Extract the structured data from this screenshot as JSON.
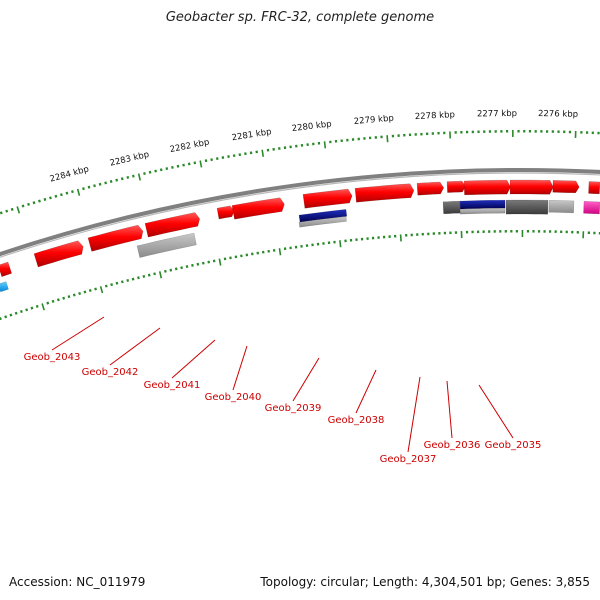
{
  "title": "Geobacter sp. FRC-32, complete genome",
  "footer": {
    "accession": "Accession: NC_011979",
    "summary": "Topology: circular; Length: 4,304,501 bp; Genes: 3,855"
  },
  "scale_labels": [
    "2284 kbp",
    "2283 kbp",
    "2282 kbp",
    "2281 kbp",
    "2280 kbp",
    "2279 kbp",
    "2278 kbp",
    "2277 kbp",
    "2276 kbp"
  ],
  "gene_labels": [
    "Geob_2043",
    "Geob_2042",
    "Geob_2041",
    "Geob_2040",
    "Geob_2039",
    "Geob_2038",
    "Geob_2037",
    "Geob_2036",
    "Geob_2035"
  ],
  "colors": {
    "gene_forward": "#ff0000",
    "tick": "#2a8a2a",
    "backbone": "#808080",
    "label": "#cc0000",
    "rna_navy": "#000080",
    "gray_feature": "#a0a0a0",
    "dark_feature": "#505050",
    "magenta_feature": "#ff00aa",
    "cyan_feature": "#00aaff"
  }
}
